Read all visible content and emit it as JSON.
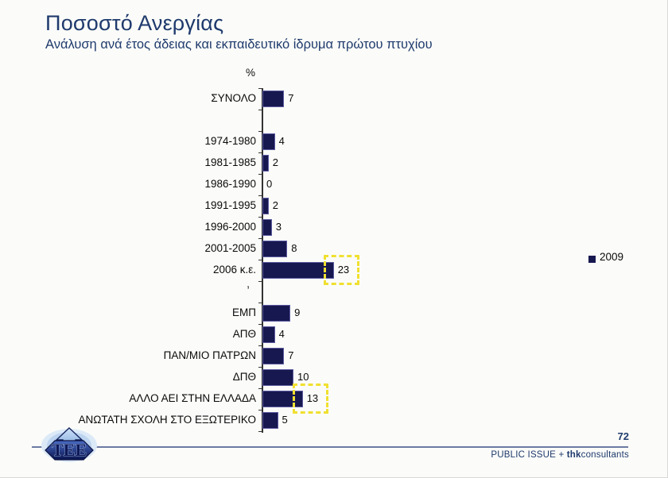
{
  "header": {
    "title": "Ποσοστό Ανεργίας",
    "subtitle": "Ανάλυση ανά έτος άδειας και εκπαιδευτικό ίδρυμα πρώτου πτυχίου"
  },
  "chart_data": {
    "type": "bar",
    "orientation": "horizontal",
    "title": "Ποσοστό Ανεργίας",
    "axis_top_label": "%",
    "xlim": [
      0,
      25
    ],
    "grid": false,
    "bar_color": "#181850",
    "highlight_color": "#f0e030",
    "legend": {
      "label": "2009",
      "color": "#181850",
      "position": "right"
    },
    "footnote_mark": ",",
    "groups": [
      {
        "name": "total",
        "rows": [
          {
            "label": "ΣΥΝΟΛΟ",
            "value": 7
          }
        ]
      },
      {
        "name": "year-of-license",
        "rows": [
          {
            "label": "1974-1980",
            "value": 4
          },
          {
            "label": "1981-1985",
            "value": 2
          },
          {
            "label": "1986-1990",
            "value": 0
          },
          {
            "label": "1991-1995",
            "value": 2
          },
          {
            "label": "1996-2000",
            "value": 3
          },
          {
            "label": "2001-2005",
            "value": 8
          },
          {
            "label": "2006 κ.ε.",
            "value": 23,
            "highlighted": true
          }
        ]
      },
      {
        "name": "institution",
        "rows": [
          {
            "label": "ΕΜΠ",
            "value": 9
          },
          {
            "label": "ΑΠΘ",
            "value": 4
          },
          {
            "label": "ΠΑΝ/ΜΙΟ ΠΑΤΡΩΝ",
            "value": 7
          },
          {
            "label": "ΔΠΘ",
            "value": 10
          },
          {
            "label": "ΑΛΛΟ ΑΕΙ ΣΤΗΝ ΕΛΛΑΔΑ",
            "value": 13,
            "highlighted": true
          },
          {
            "label": "ΑΝΩΤΑΤΗ ΣΧΟΛΗ ΣΤΟ ΕΞΩΤΕΡΙΚΟ",
            "value": 5
          }
        ]
      }
    ]
  },
  "footer": {
    "page_number": "72",
    "credit": {
      "prefix": "PUBLIC ISSUE + ",
      "bold": "thk",
      "suffix": "consultants"
    },
    "logo_text": "TEE"
  },
  "colors": {
    "accent_navy": "#1f3a6d",
    "bar_navy": "#181850",
    "highlight_yellow": "#f0e030"
  }
}
